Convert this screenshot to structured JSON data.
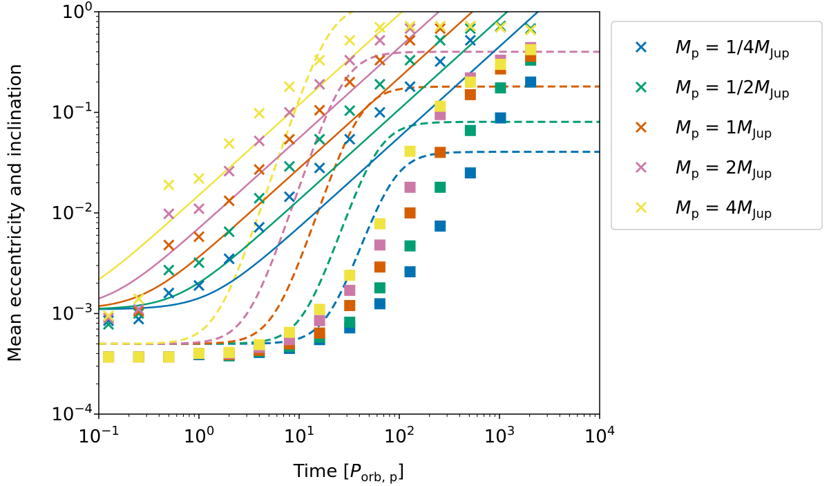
{
  "chart_data": {
    "type": "scatter",
    "title": "",
    "xlabel": {
      "prefix": "Time [",
      "var": "P",
      "sub": "orb, p",
      "suffix": "]"
    },
    "ylabel": "Mean eccentricity and inclination",
    "xscale": "log",
    "yscale": "log",
    "xlim": [
      0.1,
      10000
    ],
    "ylim": [
      0.0001,
      1
    ],
    "x_ticks": [
      {
        "value": 0.1,
        "base": "10",
        "exp": "−1"
      },
      {
        "value": 1,
        "base": "10",
        "exp": "0"
      },
      {
        "value": 10,
        "base": "10",
        "exp": "1"
      },
      {
        "value": 100,
        "base": "10",
        "exp": "2"
      },
      {
        "value": 1000,
        "base": "10",
        "exp": "3"
      },
      {
        "value": 10000,
        "base": "10",
        "exp": "4"
      }
    ],
    "y_ticks": [
      {
        "value": 0.0001,
        "base": "10",
        "exp": "−4"
      },
      {
        "value": 0.001,
        "base": "10",
        "exp": "−3"
      },
      {
        "value": 0.01,
        "base": "10",
        "exp": "−2"
      },
      {
        "value": 0.1,
        "base": "10",
        "exp": "−1"
      },
      {
        "value": 1,
        "base": "10",
        "exp": "0"
      }
    ],
    "legend_position": "outside-right-top",
    "grid": false,
    "x_points": [
      0.125,
      0.25,
      0.5,
      1,
      2,
      4,
      8,
      16,
      32,
      64,
      128,
      256,
      512,
      1024,
      2048
    ],
    "series": [
      {
        "name": "M_p = 1/4 M_Jup",
        "legend": {
          "lhs": "M",
          "lhs_sub": "p",
          "eq": " = 1/4",
          "rhs": "M",
          "rhs_sub": "Jup"
        },
        "color": "#0072b2",
        "eccentricity": [
          0.00085,
          0.00088,
          0.0016,
          0.0019,
          0.0035,
          0.0072,
          0.0145,
          0.028,
          0.054,
          0.1,
          0.18,
          0.32,
          0.52,
          0.72,
          0.68
        ],
        "inclination": [
          0.00037,
          0.00037,
          0.00037,
          0.00039,
          0.00038,
          0.00041,
          0.00045,
          0.00055,
          0.00072,
          0.00125,
          0.0026,
          0.0074,
          0.025,
          0.088,
          0.2
        ],
        "ecc_model": {
          "A": 0.0011,
          "B": 0.0009,
          "k": 0.9
        },
        "inc_model": {
          "C": 0.0005,
          "t0": 85,
          "p": 3,
          "D": 0.04
        }
      },
      {
        "name": "M_p = 1/2 M_Jup",
        "legend": {
          "lhs": "M",
          "lhs_sub": "p",
          "eq": " = 1/2",
          "rhs": "M",
          "rhs_sub": "Jup"
        },
        "color": "#009e73",
        "eccentricity": [
          0.00078,
          0.001,
          0.0027,
          0.0032,
          0.0065,
          0.014,
          0.029,
          0.054,
          0.104,
          0.19,
          0.33,
          0.52,
          0.68,
          0.72,
          0.68
        ],
        "inclination": [
          0.00037,
          0.00037,
          0.00037,
          0.0004,
          0.00038,
          0.00042,
          0.00047,
          0.00058,
          0.00082,
          0.0018,
          0.0047,
          0.018,
          0.066,
          0.175,
          0.33
        ],
        "ecc_model": {
          "A": 0.0011,
          "B": 0.0017,
          "k": 0.9
        },
        "inc_model": {
          "C": 0.0005,
          "t0": 60,
          "p": 3,
          "D": 0.08
        }
      },
      {
        "name": "M_p = 1M_Jup",
        "legend": {
          "lhs": "M",
          "lhs_sub": "p",
          "eq": " = 1",
          "rhs": "M",
          "rhs_sub": "Jup"
        },
        "color": "#d55e00",
        "eccentricity": [
          0.0009,
          0.00105,
          0.0048,
          0.0058,
          0.0132,
          0.027,
          0.054,
          0.105,
          0.2,
          0.33,
          0.52,
          0.68,
          0.72,
          0.7,
          0.66
        ],
        "inclination": [
          0.00037,
          0.00037,
          0.00037,
          0.0004,
          0.00039,
          0.00043,
          0.0005,
          0.00064,
          0.0012,
          0.0029,
          0.01,
          0.04,
          0.15,
          0.27,
          0.36
        ],
        "ecc_model": {
          "A": 0.0011,
          "B": 0.0035,
          "k": 0.9
        },
        "inc_model": {
          "C": 0.0005,
          "t0": 40,
          "p": 3,
          "D": 0.18
        }
      },
      {
        "name": "M_p = 2M_Jup",
        "legend": {
          "lhs": "M",
          "lhs_sub": "p",
          "eq": " = 2",
          "rhs": "M",
          "rhs_sub": "Jup"
        },
        "color": "#cc79a7",
        "eccentricity": [
          0.0009,
          0.0011,
          0.0098,
          0.011,
          0.026,
          0.052,
          0.1,
          0.19,
          0.33,
          0.52,
          0.68,
          0.72,
          0.72,
          0.7,
          0.66
        ],
        "inclination": [
          0.00037,
          0.00037,
          0.00037,
          0.0004,
          0.0004,
          0.00046,
          0.00055,
          0.00085,
          0.0017,
          0.0048,
          0.018,
          0.095,
          0.22,
          0.33,
          0.44
        ],
        "ecc_model": {
          "A": 0.0011,
          "B": 0.007,
          "k": 0.9
        },
        "inc_model": {
          "C": 0.0005,
          "t0": 28,
          "p": 3,
          "D": 0.4
        }
      },
      {
        "name": "M_p = 4M_Jup",
        "legend": {
          "lhs": "M",
          "lhs_sub": "p",
          "eq": " = 4",
          "rhs": "M",
          "rhs_sub": "Jup"
        },
        "color": "#f0e442",
        "eccentricity": [
          0.00095,
          0.0014,
          0.019,
          0.022,
          0.049,
          0.098,
          0.18,
          0.33,
          0.52,
          0.7,
          0.72,
          0.72,
          0.72,
          0.7,
          0.66
        ],
        "inclination": [
          0.00037,
          0.00037,
          0.00037,
          0.0004,
          0.00041,
          0.00049,
          0.00065,
          0.0011,
          0.0024,
          0.0078,
          0.041,
          0.115,
          0.2,
          0.3,
          0.42
        ],
        "ecc_model": {
          "A": 0.0011,
          "B": 0.015,
          "k": 0.9
        },
        "inc_model": {
          "C": 0.0005,
          "t0": 20,
          "p": 3,
          "D": 1.2
        }
      }
    ]
  }
}
